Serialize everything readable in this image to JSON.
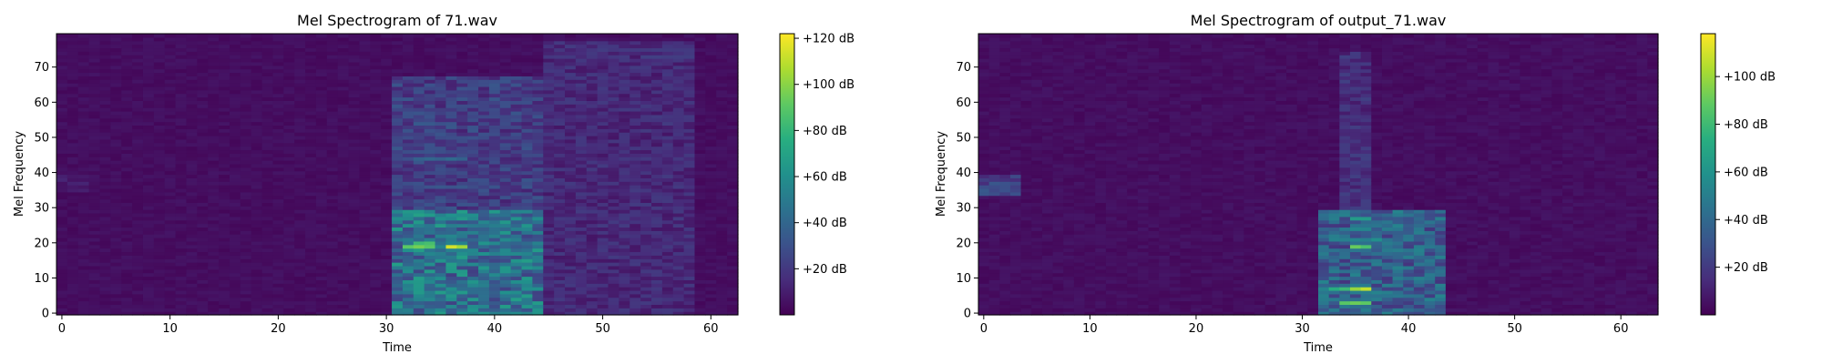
{
  "chart_data": [
    {
      "type": "heatmap",
      "title": "Mel Spectrogram of 71.wav",
      "xlabel": "Time",
      "ylabel": "Mel Frequency",
      "x_range": [
        -0.5,
        62.5
      ],
      "y_range": [
        -0.5,
        79.5
      ],
      "x_ticks": [
        0,
        10,
        20,
        30,
        40,
        50,
        60
      ],
      "y_ticks": [
        0,
        10,
        20,
        30,
        40,
        50,
        60,
        70
      ],
      "colorbar": {
        "range": [
          0,
          122
        ],
        "ticks": [
          20,
          40,
          60,
          80,
          100,
          120
        ],
        "tick_labels": [
          "+20 dB",
          "+40 dB",
          "+60 dB",
          "+80 dB",
          "+100 dB",
          "+120 dB"
        ]
      },
      "regions": [
        {
          "t": [
            31,
            45
          ],
          "f": [
            0,
            30
          ],
          "level": 45
        },
        {
          "t": [
            31,
            45
          ],
          "f": [
            30,
            68
          ],
          "level": 22
        },
        {
          "t": [
            45,
            59
          ],
          "f": [
            0,
            78
          ],
          "level": 14
        },
        {
          "t": [
            0,
            3
          ],
          "f": [
            35,
            40
          ],
          "level": 9
        }
      ],
      "peaks": [
        {
          "t": 31.5,
          "f": 19,
          "dt": 3.5,
          "level": 105
        },
        {
          "t": 35.5,
          "f": 19,
          "dt": 2,
          "level": 120
        },
        {
          "t": 33,
          "f": 20,
          "dt": 2,
          "level": 95
        },
        {
          "t": 32,
          "f": 28,
          "dt": 3,
          "level": 70
        },
        {
          "t": 36,
          "f": 28,
          "dt": 3,
          "level": 65
        },
        {
          "t": 32,
          "f": 25,
          "dt": 9,
          "level": 55
        },
        {
          "t": 37,
          "f": 17,
          "dt": 7,
          "level": 60
        },
        {
          "t": 33,
          "f": 44,
          "dt": 5,
          "level": 42
        },
        {
          "t": 33,
          "f": 54,
          "dt": 4,
          "level": 35
        },
        {
          "t": 33,
          "f": 7,
          "dt": 7,
          "level": 45
        },
        {
          "t": 38,
          "f": 5,
          "dt": 6,
          "level": 35
        },
        {
          "t": 33,
          "f": 64,
          "dt": 3,
          "level": 28
        },
        {
          "t": 49,
          "f": 75,
          "dt": 10,
          "level": 22
        },
        {
          "t": 54,
          "f": 73,
          "dt": 5,
          "level": 25
        },
        {
          "t": 53,
          "f": 55,
          "dt": 6,
          "level": 20
        },
        {
          "t": 50,
          "f": 65,
          "dt": 5,
          "level": 18
        },
        {
          "t": 46,
          "f": 6,
          "dt": 3,
          "level": 20
        }
      ]
    },
    {
      "type": "heatmap",
      "title": "Mel Spectrogram of output_71.wav",
      "xlabel": "Time",
      "ylabel": "Mel Frequency",
      "x_range": [
        -0.5,
        63.5
      ],
      "y_range": [
        -0.5,
        79.5
      ],
      "x_ticks": [
        0,
        10,
        20,
        30,
        40,
        50,
        60
      ],
      "y_ticks": [
        0,
        10,
        20,
        30,
        40,
        50,
        60,
        70
      ],
      "colorbar": {
        "range": [
          0,
          118
        ],
        "ticks": [
          20,
          40,
          60,
          80,
          100
        ],
        "tick_labels": [
          "+20 dB",
          "+40 dB",
          "+60 dB",
          "+80 dB",
          "+100 dB"
        ]
      },
      "regions": [
        {
          "t": [
            32,
            44
          ],
          "f": [
            0,
            30
          ],
          "level": 35
        },
        {
          "t": [
            34,
            37
          ],
          "f": [
            30,
            75
          ],
          "level": 15
        },
        {
          "t": [
            0,
            4
          ],
          "f": [
            34,
            40
          ],
          "level": 22
        }
      ],
      "peaks": [
        {
          "t": 34.5,
          "f": 19,
          "dt": 2,
          "level": 95
        },
        {
          "t": 34.5,
          "f": 7,
          "dt": 2,
          "level": 110
        },
        {
          "t": 33,
          "f": 7,
          "dt": 1.5,
          "level": 80
        },
        {
          "t": 33.5,
          "f": 3,
          "dt": 3,
          "level": 95
        },
        {
          "t": 34.5,
          "f": 27,
          "dt": 2,
          "level": 65
        },
        {
          "t": 34.5,
          "f": 24,
          "dt": 2,
          "level": 55
        },
        {
          "t": 33,
          "f": 21,
          "dt": 5,
          "level": 58
        },
        {
          "t": 37,
          "f": 17,
          "dt": 5,
          "level": 45
        },
        {
          "t": 36,
          "f": 5,
          "dt": 6,
          "level": 45
        },
        {
          "t": 37,
          "f": 28,
          "dt": 4,
          "level": 40
        },
        {
          "t": 34.5,
          "f": 45,
          "dt": 2,
          "level": 25
        },
        {
          "t": 1,
          "f": 37,
          "dt": 3,
          "level": 30
        }
      ]
    }
  ]
}
